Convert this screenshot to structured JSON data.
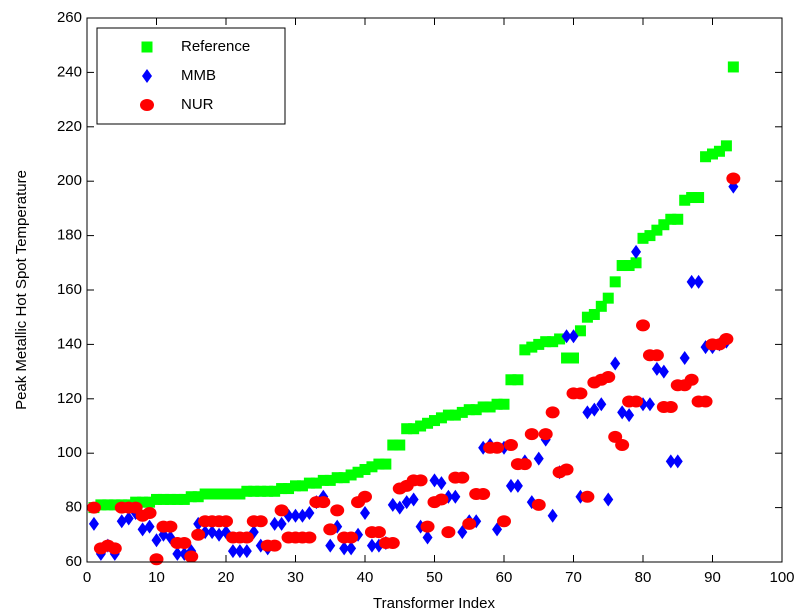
{
  "chart_data": {
    "type": "scatter",
    "xlabel": "Transformer Index",
    "ylabel": "Peak Metallic Hot Spot Temperature",
    "x": [
      1,
      2,
      3,
      4,
      5,
      6,
      7,
      8,
      9,
      10,
      11,
      12,
      13,
      14,
      15,
      16,
      17,
      18,
      19,
      20,
      21,
      22,
      23,
      24,
      25,
      26,
      27,
      28,
      29,
      30,
      31,
      32,
      33,
      34,
      35,
      36,
      37,
      38,
      39,
      40,
      41,
      42,
      43,
      44,
      45,
      46,
      47,
      48,
      49,
      50,
      51,
      52,
      53,
      54,
      55,
      56,
      57,
      58,
      59,
      60,
      61,
      62,
      63,
      64,
      65,
      66,
      67,
      68,
      69,
      70,
      71,
      72,
      73,
      74,
      75,
      76,
      77,
      78,
      79,
      80,
      81,
      82,
      83,
      84,
      85,
      86,
      87,
      88,
      89,
      90,
      91,
      92,
      93
    ],
    "series": [
      {
        "name": "Reference",
        "color": "#00ff00",
        "marker": "square",
        "values": [
          80,
          81,
          81,
          81,
          81,
          81,
          82,
          82,
          82,
          83,
          83,
          83,
          83,
          83,
          84,
          84,
          85,
          85,
          85,
          85,
          85,
          85,
          86,
          86,
          86,
          86,
          86,
          87,
          87,
          88,
          88,
          89,
          89,
          90,
          90,
          91,
          91,
          92,
          93,
          94,
          95,
          96,
          96,
          103,
          103,
          109,
          109,
          110,
          111,
          112,
          113,
          114,
          114,
          115,
          116,
          116,
          117,
          117,
          118,
          118,
          127,
          127,
          138,
          139,
          140,
          141,
          141,
          142,
          135,
          135,
          145,
          150,
          151,
          154,
          157,
          163,
          169,
          169,
          170,
          179,
          180,
          182,
          184,
          186,
          186,
          193,
          194,
          194,
          209,
          210,
          211,
          213,
          242
        ]
      },
      {
        "name": "MMB",
        "color": "#0000ff",
        "marker": "diamond",
        "values": [
          74,
          63,
          66,
          63,
          75,
          76,
          78,
          72,
          73,
          68,
          70,
          69,
          63,
          63,
          64,
          74,
          71,
          71,
          70,
          71,
          64,
          64,
          64,
          71,
          66,
          65,
          74,
          74,
          77,
          77,
          77,
          78,
          82,
          84,
          66,
          73,
          65,
          65,
          70,
          78,
          66,
          66,
          67,
          81,
          80,
          82,
          83,
          73,
          69,
          90,
          89,
          84,
          84,
          71,
          75,
          75,
          102,
          103,
          72,
          102,
          88,
          88,
          97,
          82,
          98,
          105,
          77,
          93,
          143,
          143,
          84,
          115,
          116,
          118,
          83,
          133,
          115,
          114,
          174,
          118,
          118,
          131,
          130,
          97,
          97,
          135,
          163,
          163,
          139,
          139,
          140,
          141,
          198
        ]
      },
      {
        "name": "NUR",
        "color": "#ff0000",
        "marker": "circle",
        "values": [
          80,
          65,
          66,
          65,
          80,
          80,
          80,
          77,
          78,
          61,
          73,
          73,
          67,
          67,
          62,
          70,
          75,
          75,
          75,
          75,
          69,
          69,
          69,
          75,
          75,
          66,
          66,
          79,
          69,
          69,
          69,
          69,
          82,
          82,
          72,
          79,
          69,
          69,
          82,
          84,
          71,
          71,
          67,
          67,
          87,
          88,
          90,
          90,
          73,
          82,
          83,
          71,
          91,
          91,
          74,
          85,
          85,
          102,
          102,
          75,
          103,
          96,
          96,
          107,
          81,
          107,
          115,
          93,
          94,
          122,
          122,
          84,
          126,
          127,
          128,
          106,
          103,
          119,
          119,
          147,
          136,
          136,
          117,
          117,
          125,
          125,
          127,
          119,
          119,
          140,
          140,
          142,
          201
        ]
      }
    ],
    "xlim": [
      0,
      100
    ],
    "xticks": [
      0,
      10,
      20,
      30,
      40,
      50,
      60,
      70,
      80,
      90,
      100
    ],
    "ylim": [
      60,
      260
    ],
    "yticks": [
      60,
      80,
      100,
      120,
      140,
      160,
      180,
      200,
      220,
      240,
      260
    ],
    "legend": "upper left"
  }
}
